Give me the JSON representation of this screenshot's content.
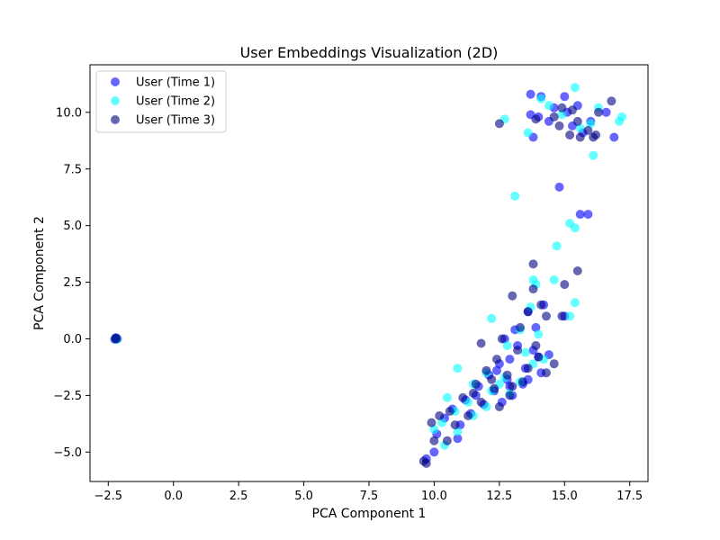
{
  "chart_data": {
    "type": "scatter",
    "title": "User Embeddings Visualization (2D)",
    "xlabel": "PCA Component 1",
    "ylabel": "PCA Component 2",
    "xlim": [
      -3.2,
      18.2
    ],
    "ylim": [
      -6.3,
      12.1
    ],
    "xticks": [
      -2.5,
      0.0,
      2.5,
      5.0,
      7.5,
      10.0,
      12.5,
      15.0,
      17.5
    ],
    "xtick_labels": [
      "−2.5",
      "0.0",
      "2.5",
      "5.0",
      "7.5",
      "10.0",
      "12.5",
      "15.0",
      "17.5"
    ],
    "yticks": [
      -5.0,
      -2.5,
      0.0,
      2.5,
      5.0,
      7.5,
      10.0
    ],
    "ytick_labels": [
      "−5.0",
      "−2.5",
      "0.0",
      "2.5",
      "5.0",
      "7.5",
      "10.0"
    ],
    "grid": false,
    "legend_position": "top-left",
    "series": [
      {
        "name": "User (Time 1)",
        "color": "#0000ff",
        "points": [
          [
            -2.2,
            0.0
          ],
          [
            -2.2,
            0.05
          ],
          [
            -2.15,
            0.0
          ],
          [
            -2.25,
            -0.02
          ],
          [
            13.7,
            10.8
          ],
          [
            14.1,
            10.7
          ],
          [
            15.0,
            10.7
          ],
          [
            14.6,
            10.2
          ],
          [
            15.5,
            10.3
          ],
          [
            13.7,
            9.9
          ],
          [
            14.4,
            9.6
          ],
          [
            15.1,
            10.0
          ],
          [
            16.0,
            9.6
          ],
          [
            16.6,
            10.0
          ],
          [
            13.8,
            8.9
          ],
          [
            15.7,
            9.1
          ],
          [
            16.9,
            8.9
          ],
          [
            15.3,
            9.4
          ],
          [
            14.0,
            9.8
          ],
          [
            14.8,
            6.7
          ],
          [
            15.6,
            5.5
          ],
          [
            15.9,
            5.5
          ],
          [
            15.0,
            1.0
          ],
          [
            13.6,
            1.2
          ],
          [
            14.2,
            1.5
          ],
          [
            13.9,
            0.5
          ],
          [
            13.1,
            0.4
          ],
          [
            12.7,
            0.0
          ],
          [
            13.2,
            -0.3
          ],
          [
            13.8,
            -0.5
          ],
          [
            14.4,
            -0.7
          ],
          [
            12.9,
            -0.9
          ],
          [
            12.5,
            -1.1
          ],
          [
            13.5,
            -1.3
          ],
          [
            14.1,
            -1.5
          ],
          [
            12.1,
            -1.6
          ],
          [
            12.8,
            -1.8
          ],
          [
            13.4,
            -2.0
          ],
          [
            11.7,
            -2.1
          ],
          [
            12.3,
            -2.3
          ],
          [
            13.0,
            -2.5
          ],
          [
            11.2,
            -2.7
          ],
          [
            11.9,
            -2.9
          ],
          [
            12.6,
            -2.8
          ],
          [
            10.7,
            -3.1
          ],
          [
            11.4,
            -3.3
          ],
          [
            10.4,
            -3.5
          ],
          [
            11.0,
            -3.8
          ],
          [
            10.1,
            -4.2
          ],
          [
            10.9,
            -4.4
          ],
          [
            10.0,
            -5.0
          ],
          [
            9.7,
            -5.3
          ],
          [
            14.0,
            -0.8
          ],
          [
            13.6,
            -1.8
          ],
          [
            12.4,
            -1.4
          ],
          [
            11.6,
            -2.5
          ],
          [
            12.9,
            -2.1
          ]
        ]
      },
      {
        "name": "User (Time 2)",
        "color": "#00ffff",
        "points": [
          [
            -2.2,
            0.02
          ],
          [
            -2.18,
            -0.03
          ],
          [
            15.4,
            11.1
          ],
          [
            14.1,
            10.6
          ],
          [
            14.4,
            10.3
          ],
          [
            16.3,
            10.2
          ],
          [
            12.7,
            9.7
          ],
          [
            17.2,
            9.8
          ],
          [
            17.1,
            9.6
          ],
          [
            13.6,
            9.1
          ],
          [
            15.6,
            9.3
          ],
          [
            16.1,
            8.1
          ],
          [
            14.9,
            9.9
          ],
          [
            16.0,
            9.5
          ],
          [
            13.1,
            6.3
          ],
          [
            15.2,
            5.1
          ],
          [
            15.4,
            4.9
          ],
          [
            14.7,
            4.1
          ],
          [
            13.8,
            2.6
          ],
          [
            14.6,
            2.6
          ],
          [
            13.9,
            2.4
          ],
          [
            15.4,
            1.6
          ],
          [
            13.7,
            1.4
          ],
          [
            15.2,
            1.0
          ],
          [
            12.2,
            0.9
          ],
          [
            13.3,
            0.4
          ],
          [
            14.0,
            0.2
          ],
          [
            12.8,
            -0.3
          ],
          [
            13.5,
            -0.6
          ],
          [
            14.2,
            -0.9
          ],
          [
            10.9,
            -1.3
          ],
          [
            12.0,
            -1.5
          ],
          [
            12.7,
            -1.7
          ],
          [
            13.3,
            -1.9
          ],
          [
            11.5,
            -2.0
          ],
          [
            12.2,
            -2.3
          ],
          [
            12.9,
            -2.4
          ],
          [
            10.5,
            -2.6
          ],
          [
            11.3,
            -2.8
          ],
          [
            12.0,
            -3.0
          ],
          [
            10.8,
            -3.2
          ],
          [
            11.5,
            -3.4
          ],
          [
            10.3,
            -3.7
          ],
          [
            10.9,
            -4.1
          ],
          [
            10.0,
            -4.0
          ],
          [
            10.4,
            -4.7
          ],
          [
            13.8,
            -1.1
          ],
          [
            12.5,
            -2.0
          ]
        ]
      },
      {
        "name": "User (Time 3)",
        "color": "#000080",
        "points": [
          [
            -2.2,
            0.0
          ],
          [
            -2.22,
            0.03
          ],
          [
            16.8,
            10.5
          ],
          [
            14.9,
            10.2
          ],
          [
            15.3,
            10.1
          ],
          [
            16.3,
            10.0
          ],
          [
            13.9,
            9.7
          ],
          [
            14.6,
            9.8
          ],
          [
            15.5,
            9.6
          ],
          [
            12.5,
            9.5
          ],
          [
            15.9,
            9.2
          ],
          [
            15.2,
            9.0
          ],
          [
            16.2,
            9.0
          ],
          [
            15.6,
            8.9
          ],
          [
            14.8,
            9.4
          ],
          [
            16.1,
            8.9
          ],
          [
            13.8,
            3.3
          ],
          [
            15.5,
            3.0
          ],
          [
            15.0,
            2.4
          ],
          [
            13.8,
            2.2
          ],
          [
            13.0,
            1.9
          ],
          [
            14.1,
            1.5
          ],
          [
            13.6,
            1.2
          ],
          [
            14.3,
            1.0
          ],
          [
            14.9,
            1.0
          ],
          [
            13.3,
            0.5
          ],
          [
            12.6,
            0.0
          ],
          [
            11.8,
            -0.2
          ],
          [
            13.2,
            -0.5
          ],
          [
            14.0,
            -0.8
          ],
          [
            14.6,
            -1.1
          ],
          [
            12.4,
            -0.9
          ],
          [
            13.6,
            -1.3
          ],
          [
            12.0,
            -1.4
          ],
          [
            12.8,
            -1.6
          ],
          [
            13.4,
            -1.9
          ],
          [
            11.6,
            -2.0
          ],
          [
            12.3,
            -2.2
          ],
          [
            12.9,
            -2.5
          ],
          [
            11.1,
            -2.6
          ],
          [
            11.8,
            -2.8
          ],
          [
            12.5,
            -3.0
          ],
          [
            10.6,
            -3.2
          ],
          [
            11.3,
            -3.4
          ],
          [
            10.2,
            -3.4
          ],
          [
            9.9,
            -3.7
          ],
          [
            10.8,
            -3.8
          ],
          [
            10.0,
            -4.5
          ],
          [
            10.5,
            -4.5
          ],
          [
            9.6,
            -5.4
          ],
          [
            9.7,
            -5.5
          ],
          [
            14.3,
            -1.5
          ],
          [
            13.0,
            -2.1
          ],
          [
            12.2,
            -1.8
          ],
          [
            11.5,
            -2.4
          ],
          [
            13.9,
            -0.3
          ]
        ]
      }
    ]
  }
}
